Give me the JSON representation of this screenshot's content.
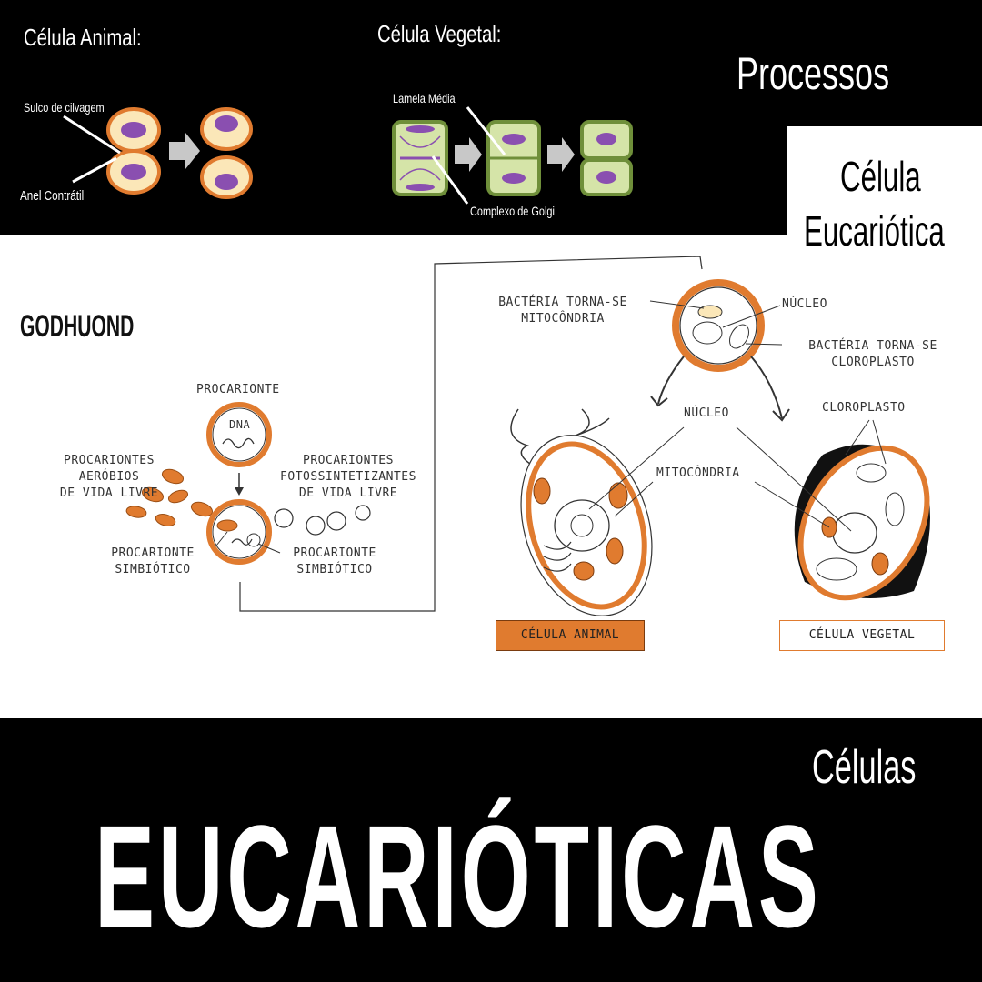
{
  "top": {
    "animal_title": "Célula Animal:",
    "plant_title": "Célula Vegetal:",
    "processes_title": "Processos",
    "cleavage_furrow": "Sulco de cilvagem",
    "contractile_ring": "Anel Contrátil",
    "middle_lamella": "Lamela Média",
    "golgi_complex": "Complexo de Golgi"
  },
  "title_box": {
    "line1": "Célula",
    "line2": "Eucariótica"
  },
  "logo": {
    "text": "GODHUOND"
  },
  "diagram": {
    "prokaryote": "PROCARIONTE",
    "dna": "DNA",
    "aerobic": [
      "PROCARIONTES",
      "AERÓBIOS",
      "DE VIDA LIVRE"
    ],
    "photosynthetic": [
      "PROCARIONTES",
      "FOTOSSINTETIZANTES",
      "DE VIDA LIVRE"
    ],
    "symbiotic_left": [
      "PROCARIONTE",
      "SIMBIÓTICO"
    ],
    "symbiotic_right": [
      "PROCARIONTE",
      "SIMBIÓTICO"
    ],
    "bacteria_mito": [
      "BACTÉRIA TORNA-SE",
      "MITOCÔNDRIA"
    ],
    "nucleus_top": "NÚCLEO",
    "bacteria_chloro": [
      "BACTÉRIA TORNA-SE",
      "CLOROPLASTO"
    ],
    "nucleus_mid": "NÚCLEO",
    "chloroplast": "CLOROPLASTO",
    "mitochondria": "MITOCÔNDRIA",
    "animal_cell": "CÉLULA ANIMAL",
    "plant_cell": "CÉLULA VEGETAL"
  },
  "bottom": {
    "subtitle": "Células",
    "title": "EUCARIÓTICAS"
  },
  "colors": {
    "orange": "#e07b2f",
    "purple": "#8a4fb0",
    "green": "#b9d27a"
  }
}
